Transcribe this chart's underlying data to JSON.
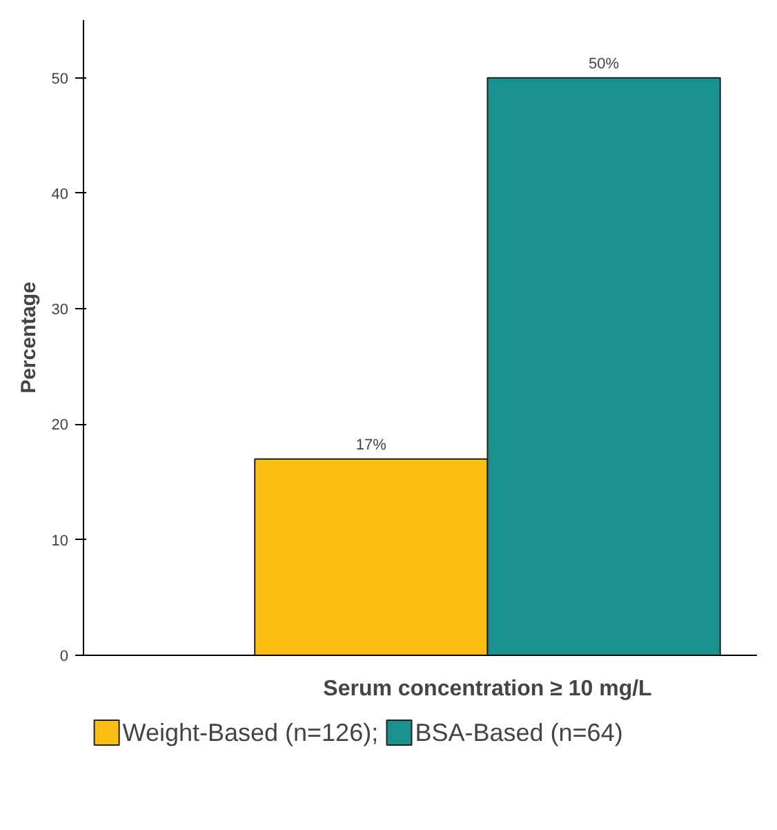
{
  "chart_data": {
    "type": "bar",
    "ylabel": "Percentage",
    "categories": [
      "Serum concentration ≥ 10 mg/L"
    ],
    "series": [
      {
        "name": "Weight-Based (n=126);",
        "color": "#fbbf14",
        "values": [
          17
        ],
        "value_labels": [
          "17%"
        ]
      },
      {
        "name": "BSA-Based (n=64)",
        "color": "#18918f",
        "values": [
          50
        ],
        "value_labels": [
          "50%"
        ]
      }
    ],
    "ylim": [
      0,
      55
    ],
    "yticks": [
      0,
      10,
      20,
      30,
      40,
      50
    ],
    "grid": false,
    "legend": "bottom"
  }
}
